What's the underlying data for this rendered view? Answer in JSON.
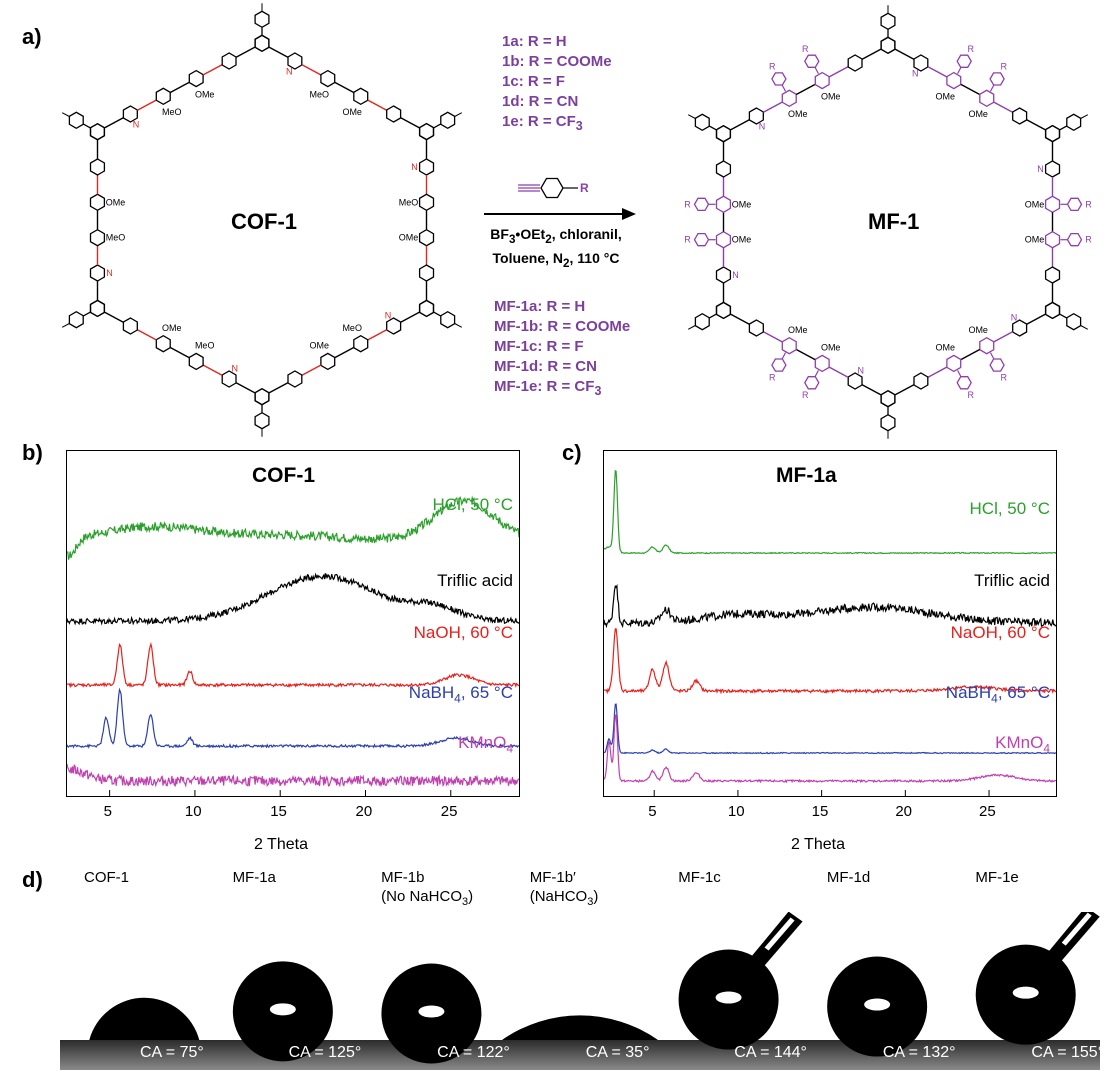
{
  "panel_a": {
    "label": "a)",
    "left_title": "COF-1",
    "right_title": "MF-1",
    "reagent_list": [
      "1a: R = H",
      "1b: R = COOMe",
      "1c: R = F",
      "1d: R = CN",
      "1e: R = CF3"
    ],
    "reagent_list_display": [
      {
        "pre": "1a",
        "post": ": R = H",
        "sub": ""
      },
      {
        "pre": "1b",
        "post": ": R = COOMe",
        "sub": ""
      },
      {
        "pre": "1c",
        "post": ": R = F",
        "sub": ""
      },
      {
        "pre": "1d",
        "post": ": R = CN",
        "sub": ""
      },
      {
        "pre": "1e",
        "post": ": R = CF",
        "sub": "3"
      }
    ],
    "reagent_structure_label": "R",
    "conditions_line1": "BF3•OEt2, chloranil,",
    "conditions_line2": "Toluene, N2, 110 °C",
    "product_list": [
      {
        "pre": "MF-1a",
        "post": ": R = H",
        "sub": ""
      },
      {
        "pre": "MF-1b",
        "post": ": R = COOMe",
        "sub": ""
      },
      {
        "pre": "MF-1c",
        "post": ": R = F",
        "sub": ""
      },
      {
        "pre": "MF-1d",
        "post": ": R = CN",
        "sub": ""
      },
      {
        "pre": "MF-1e",
        "post": ": R = CF",
        "sub": "3"
      }
    ],
    "methoxy_label": "OMe",
    "methoxy_label_alt": "MeO",
    "imine_label": "N",
    "r_label": "R",
    "colors": {
      "structure": "#000000",
      "imine": "#e0281e",
      "quinoline": "#8e3fae"
    }
  },
  "panel_b": {
    "label": "b)",
    "chart_data": {
      "type": "line",
      "title": "COF-1",
      "xlabel": "2 Theta",
      "xlim": [
        2.5,
        29
      ],
      "xticks": [
        5,
        10,
        15,
        20,
        25
      ],
      "series": [
        {
          "name": "HCl, 50 °C",
          "color": "#2ca02c",
          "peaks": []
        },
        {
          "name": "Triflic acid",
          "color": "#000000",
          "peaks": []
        },
        {
          "name": "NaOH, 60 °C",
          "color": "#e8201c",
          "peaks": [
            5.6,
            7.4,
            9.7,
            25.5
          ]
        },
        {
          "name": "NaBH4, 65 °C",
          "color": "#2b3fb0",
          "peaks": [
            4.8,
            5.6,
            7.4,
            9.7,
            25.3
          ]
        },
        {
          "name": "KMnO4",
          "color": "#c040b0",
          "peaks": []
        }
      ]
    }
  },
  "panel_c": {
    "label": "c)",
    "chart_data": {
      "type": "line",
      "title": "MF-1a",
      "xlabel": "2 Theta",
      "xlim": [
        2,
        29
      ],
      "xticks": [
        5,
        10,
        15,
        20,
        25
      ],
      "series": [
        {
          "name": "HCl, 50 °C",
          "color": "#2ca02c",
          "peaks": [
            2.7,
            4.9,
            5.7
          ]
        },
        {
          "name": "Triflic acid",
          "color": "#000000",
          "peaks": [
            2.7,
            5.7
          ]
        },
        {
          "name": "NaOH, 60 °C",
          "color": "#e8201c",
          "peaks": [
            2.7,
            4.9,
            5.7,
            7.5
          ]
        },
        {
          "name": "NaBH4, 65 °C",
          "color": "#2b3fb0",
          "peaks": [
            2.7,
            4.9,
            5.7
          ]
        },
        {
          "name": "KMnO4",
          "color": "#c040b0",
          "peaks": [
            2.7,
            4.9,
            5.7,
            7.5,
            25.5
          ]
        }
      ]
    }
  },
  "panel_d": {
    "label": "d)",
    "drops": [
      {
        "name": "COF-1",
        "sub_line": "",
        "ca": "CA = 75°",
        "angle": 75
      },
      {
        "name": "MF-1a",
        "sub_line": "",
        "ca": "CA = 125°",
        "angle": 125
      },
      {
        "name": "MF-1b",
        "sub_line": "(No NaHCO3)",
        "ca": "CA = 122°",
        "angle": 122
      },
      {
        "name": "MF-1b′",
        "sub_line": "(NaHCO3)",
        "ca": "CA = 35°",
        "angle": 35
      },
      {
        "name": "MF-1c",
        "sub_line": "",
        "ca": "CA = 144°",
        "angle": 144
      },
      {
        "name": "MF-1d",
        "sub_line": "",
        "ca": "CA = 132°",
        "angle": 132
      },
      {
        "name": "MF-1e",
        "sub_line": "",
        "ca": "CA = 155°",
        "angle": 155
      }
    ]
  }
}
